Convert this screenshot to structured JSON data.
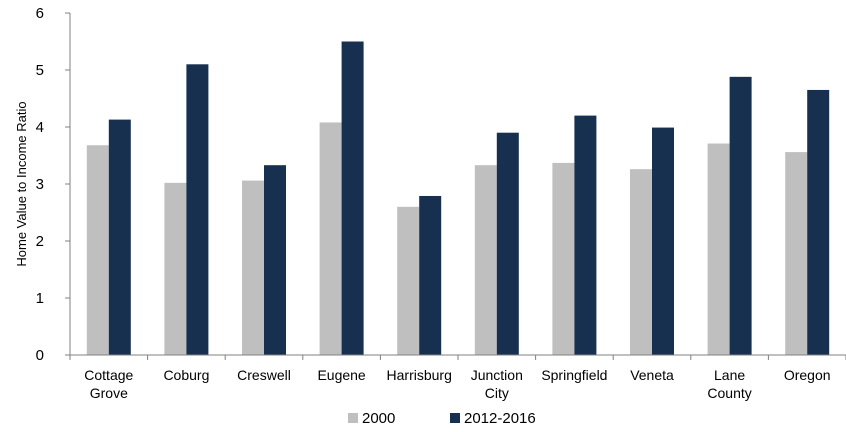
{
  "chart_data": {
    "type": "bar",
    "title": "",
    "xlabel": "",
    "ylabel": "Home Value to Income Ratio",
    "ylim": [
      0,
      6
    ],
    "yticks": [
      0,
      1,
      2,
      3,
      4,
      5,
      6
    ],
    "grid": false,
    "legend_position": "bottom",
    "categories": [
      [
        "Cottage",
        "Grove"
      ],
      [
        "Coburg"
      ],
      [
        "Creswell"
      ],
      [
        "Eugene"
      ],
      [
        "Harrisburg"
      ],
      [
        "Junction",
        "City"
      ],
      [
        "Springfield"
      ],
      [
        "Veneta"
      ],
      [
        "Lane",
        "County"
      ],
      [
        "Oregon"
      ]
    ],
    "series": [
      {
        "name": "2000",
        "color": "#bfbfbf",
        "values": [
          3.68,
          3.02,
          3.06,
          4.08,
          2.6,
          3.33,
          3.37,
          3.26,
          3.71,
          3.56
        ]
      },
      {
        "name": "2012-2016",
        "color": "#17304f",
        "values": [
          4.13,
          5.1,
          3.33,
          5.5,
          2.79,
          3.9,
          4.2,
          3.99,
          4.88,
          4.65
        ]
      }
    ]
  }
}
